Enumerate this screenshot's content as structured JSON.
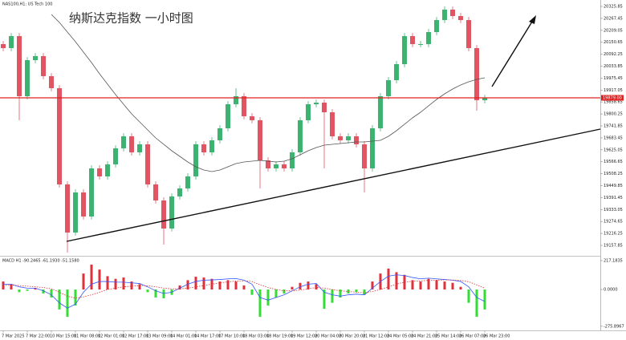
{
  "chart_data": [
    {
      "type": "candlestick",
      "title": "纳斯达克指数 一小时图",
      "subtitle": "NAS100,H1: US Tech 100",
      "open": [
        20141.6,
        20122.1,
        20180.8,
        19886.9,
        20063.3,
        20082.9,
        19984.9,
        19926.1,
        19455.8,
        19220.7,
        19416.6,
        19299.1,
        19534.2,
        19495.0,
        19553.8,
        19632.2,
        19691.0,
        19612.6,
        19651.8,
        19455.8,
        19377.4,
        19240.3,
        19397.0,
        19436.2,
        19495.0,
        19651.8,
        19612.6,
        19671.4,
        19730.2,
        19847.7,
        19886.9,
        19789.0,
        19769.4,
        19573.4,
        19534.2,
        19553.8,
        19534.2,
        19612.6,
        19769.4,
        19847.7,
        19855.6,
        19808.5,
        19691.0,
        19671.4,
        19691.0,
        19651.8,
        19534.2,
        19730.2,
        19886.9,
        19965.3,
        20043.7,
        20180.8,
        20141.6,
        20141.6,
        20200.4,
        20259.2,
        20310.2,
        20278.8,
        20259.2,
        20122.1,
        19867.3
      ],
      "high": [
        20156.6,
        20195.8,
        20195.8,
        20078.3,
        20097.9,
        20097.9,
        19999.9,
        19941.1,
        19470.8,
        19431.6,
        19431.6,
        19549.2,
        19549.2,
        19568.8,
        19647.2,
        19706.0,
        19706.0,
        19666.8,
        19666.8,
        19470.8,
        19392.4,
        19412.0,
        19451.2,
        19510.0,
        19666.8,
        19666.8,
        19686.4,
        19745.2,
        19862.7,
        19926.1,
        19901.9,
        19804.0,
        19784.4,
        19588.4,
        19568.8,
        19568.8,
        19627.6,
        19784.4,
        19862.7,
        19870.6,
        19870.6,
        19823.5,
        19706.0,
        19706.0,
        19706.0,
        19666.8,
        19745.2,
        19901.9,
        19980.3,
        20058.7,
        20195.8,
        20195.8,
        20156.6,
        20215.4,
        20274.2,
        20325.8,
        20325.2,
        20293.8,
        20274.2,
        20137.1,
        19894.0
      ],
      "low": [
        20107.1,
        20107.1,
        19769.3,
        19871.9,
        20048.3,
        19969.9,
        19911.1,
        19440.8,
        19122.7,
        19205.7,
        19284.1,
        19284.1,
        19480.0,
        19480.0,
        19538.8,
        19617.2,
        19597.6,
        19597.6,
        19440.8,
        19362.4,
        19161.9,
        19225.3,
        19382.0,
        19421.2,
        19480.0,
        19597.6,
        19597.6,
        19656.4,
        19715.2,
        19832.7,
        19774.0,
        19754.4,
        19436.2,
        19519.2,
        19519.2,
        19519.2,
        19519.2,
        19597.6,
        19754.4,
        19832.7,
        19534.2,
        19676.0,
        19656.4,
        19656.4,
        19636.8,
        19416.6,
        19519.2,
        19715.2,
        19871.9,
        19950.3,
        20028.7,
        20126.6,
        20126.6,
        20126.6,
        20185.4,
        20244.2,
        20263.8,
        20244.2,
        20107.1,
        19816.0,
        19852.3
      ],
      "close": [
        20122.1,
        20180.8,
        19886.9,
        20063.3,
        20082.9,
        19984.9,
        19926.1,
        19455.8,
        19220.7,
        19416.6,
        19299.1,
        19534.2,
        19495.0,
        19553.8,
        19632.2,
        19691.0,
        19612.6,
        19651.8,
        19455.8,
        19377.4,
        19240.3,
        19397.0,
        19436.2,
        19495.0,
        19651.8,
        19612.6,
        19671.4,
        19730.2,
        19847.7,
        19886.9,
        19789.0,
        19769.4,
        19573.4,
        19534.2,
        19553.8,
        19534.2,
        19612.6,
        19769.4,
        19847.7,
        19855.6,
        19808.5,
        19691.0,
        19671.4,
        19691.0,
        19651.8,
        19534.2,
        19730.2,
        19886.9,
        19965.3,
        20043.7,
        20180.8,
        20141.6,
        20141.6,
        20200.4,
        20259.2,
        20310.2,
        20278.8,
        20259.2,
        20122.1,
        19867.3,
        19879.0
      ],
      "up_color": "#3cb371",
      "down_color": "#e05561",
      "ma_values": [
        null,
        null,
        null,
        null,
        null,
        null,
        20286.7,
        20247.5,
        20200.4,
        20153.4,
        20102.4,
        20051.5,
        19996.7,
        19945.7,
        19894.8,
        19847.7,
        19800.7,
        19761.5,
        19722.3,
        19683.1,
        19651.8,
        19620.4,
        19593.0,
        19565.6,
        19542.0,
        19526.4,
        19518.5,
        19526.4,
        19542.0,
        19557.7,
        19565.6,
        19569.5,
        19573.4,
        19569.5,
        19565.6,
        19569.5,
        19581.2,
        19600.8,
        19620.4,
        19636.1,
        19647.9,
        19651.8,
        19655.7,
        19659.6,
        19663.5,
        19663.5,
        19667.5,
        19671.4,
        19691.0,
        19718.4,
        19749.9,
        19781.1,
        19808.5,
        19839.9,
        19871.2,
        19898.7,
        19922.2,
        19941.8,
        19957.5,
        19969.2,
        19977.1
      ],
      "ma_color": "#555555",
      "hline": {
        "value": 19879.0,
        "label": "19879.00",
        "color": "#e02020"
      },
      "ylim": [
        19110.9,
        20357.2
      ],
      "yticks": [
        20325.85,
        20267.45,
        20209.05,
        20150.65,
        20092.25,
        20033.85,
        19975.45,
        19917.05,
        19858.65,
        19800.25,
        19741.85,
        19683.45,
        19625.05,
        19566.65,
        19508.25,
        19449.85,
        19391.45,
        19333.05,
        19274.65,
        19216.25,
        19157.85
      ]
    },
    {
      "type": "macd",
      "title": "MACD H1 -90.2465 -61.1930 -51.1580",
      "categories": [
        "7 Mar 2025",
        null,
        null,
        "7 Mar 22:00",
        null,
        null,
        "10 Mar 15:00",
        null,
        null,
        "11 Mar 08:00",
        null,
        null,
        "12 Mar 01:00",
        null,
        null,
        "12 Mar 17:00",
        null,
        null,
        "13 Mar 09:00",
        null,
        null,
        "14 Mar 01:00",
        null,
        null,
        "14 Mar 17:00",
        null,
        null,
        "17 Mar 10:00",
        null,
        null,
        "18 Mar 03:00",
        null,
        null,
        "18 Mar 19:00",
        null,
        null,
        "19 Mar 12:00",
        null,
        null,
        "20 Mar 04:00",
        null,
        null,
        "20 Mar 20:00",
        null,
        null,
        "21 Mar 12:00",
        null,
        null,
        "24 Mar 05:00",
        null,
        null,
        "24 Mar 21:00",
        null,
        null,
        "25 Mar 14:00",
        null,
        null,
        "26 Mar 07:00",
        null,
        null,
        "26 Mar 23:00"
      ],
      "values": [
        60,
        40,
        -20,
        -10,
        10,
        -30,
        -60,
        -150,
        -205,
        -120,
        120,
        187,
        150,
        100,
        80,
        90,
        60,
        40,
        -20,
        -60,
        -66,
        -40,
        30,
        70,
        96,
        90,
        80,
        60,
        70,
        60,
        30,
        -40,
        -205,
        -120,
        -60,
        -30,
        20,
        50,
        60,
        40,
        -145,
        -100,
        -60,
        -30,
        -20,
        -40,
        60,
        120,
        157,
        130,
        110,
        70,
        60,
        80,
        70,
        60,
        50,
        20,
        -100,
        -205,
        -150
      ],
      "up_color": "#e0303a",
      "down_color": "#33dd33",
      "macd_line": {
        "color": "#3355ff",
        "values": [
          40,
          40,
          20,
          10,
          10,
          -10,
          -40,
          -100,
          -140,
          -110,
          -20,
          40,
          60,
          60,
          55,
          55,
          50,
          45,
          20,
          -10,
          -30,
          -20,
          10,
          40,
          60,
          70,
          72,
          75,
          80,
          82,
          70,
          40,
          -60,
          -80,
          -60,
          -40,
          -10,
          20,
          40,
          45,
          -20,
          -40,
          -50,
          -40,
          -35,
          -40,
          10,
          60,
          100,
          110,
          105,
          90,
          80,
          85,
          80,
          75,
          70,
          60,
          20,
          -60,
          -90
        ]
      },
      "signal_line": {
        "color": "#e03030",
        "values": [
          30,
          33,
          30,
          25,
          20,
          15,
          5,
          -20,
          -50,
          -65,
          -55,
          -40,
          -20,
          0,
          10,
          20,
          25,
          30,
          28,
          20,
          10,
          5,
          5,
          10,
          20,
          30,
          40,
          50,
          57,
          63,
          65,
          60,
          35,
          15,
          0,
          -10,
          -10,
          -5,
          5,
          15,
          10,
          0,
          -10,
          -15,
          -20,
          -25,
          -15,
          0,
          20,
          40,
          55,
          62,
          65,
          68,
          70,
          72,
          71,
          68,
          58,
          35,
          10
        ]
      },
      "ylim": [
        -307,
        235
      ],
      "yticks": [
        217.1835,
        {
          "value": 0,
          "label": "0.0000"
        },
        -275.8967
      ]
    }
  ]
}
